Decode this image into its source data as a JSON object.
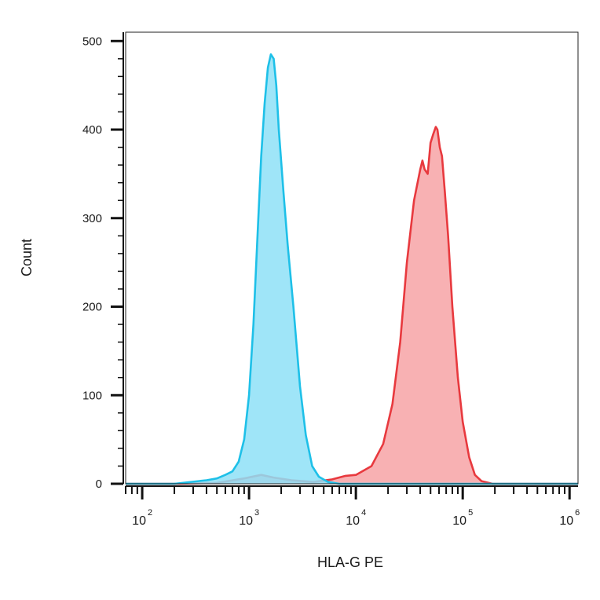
{
  "chart_data": {
    "type": "area",
    "xlabel": "HLA-G PE",
    "ylabel": "Count",
    "x_scale": "log",
    "xlim": [
      70,
      1200000
    ],
    "ylim": [
      0,
      510
    ],
    "yticks": [
      0,
      100,
      200,
      300,
      400,
      500
    ],
    "xticks": [
      {
        "value": 100,
        "base": "10",
        "exp": "2"
      },
      {
        "value": 1000,
        "base": "10",
        "exp": "3"
      },
      {
        "value": 10000,
        "base": "10",
        "exp": "4"
      },
      {
        "value": 100000,
        "base": "10",
        "exp": "5"
      },
      {
        "value": 1000000,
        "base": "10",
        "exp": "6"
      }
    ],
    "grid": false,
    "series": [
      {
        "color": "#e8393e",
        "fill": "#f7a3a6",
        "points": [
          [
            70,
            0
          ],
          [
            200,
            0
          ],
          [
            500,
            1
          ],
          [
            900,
            6
          ],
          [
            1300,
            10
          ],
          [
            1700,
            7
          ],
          [
            2500,
            4
          ],
          [
            4000,
            2
          ],
          [
            6000,
            5
          ],
          [
            8000,
            9
          ],
          [
            10000,
            10
          ],
          [
            14000,
            20
          ],
          [
            18000,
            45
          ],
          [
            22000,
            90
          ],
          [
            26000,
            160
          ],
          [
            30000,
            250
          ],
          [
            35000,
            320
          ],
          [
            40000,
            355
          ],
          [
            42000,
            365
          ],
          [
            44000,
            355
          ],
          [
            47000,
            350
          ],
          [
            50000,
            385
          ],
          [
            53000,
            395
          ],
          [
            56000,
            403
          ],
          [
            58000,
            400
          ],
          [
            61000,
            380
          ],
          [
            64000,
            370
          ],
          [
            68000,
            330
          ],
          [
            73000,
            280
          ],
          [
            80000,
            200
          ],
          [
            90000,
            120
          ],
          [
            100000,
            70
          ],
          [
            115000,
            30
          ],
          [
            130000,
            10
          ],
          [
            150000,
            3
          ],
          [
            190000,
            0
          ],
          [
            1200000,
            0
          ]
        ]
      },
      {
        "color": "#1ec0e8",
        "fill": "#8ee0f7",
        "points": [
          [
            70,
            0
          ],
          [
            200,
            0
          ],
          [
            400,
            4
          ],
          [
            500,
            6
          ],
          [
            600,
            10
          ],
          [
            700,
            14
          ],
          [
            800,
            25
          ],
          [
            900,
            50
          ],
          [
            1000,
            100
          ],
          [
            1100,
            180
          ],
          [
            1200,
            280
          ],
          [
            1300,
            370
          ],
          [
            1400,
            430
          ],
          [
            1500,
            470
          ],
          [
            1600,
            485
          ],
          [
            1700,
            480
          ],
          [
            1800,
            450
          ],
          [
            1900,
            400
          ],
          [
            2100,
            330
          ],
          [
            2300,
            270
          ],
          [
            2600,
            200
          ],
          [
            3000,
            110
          ],
          [
            3400,
            55
          ],
          [
            3900,
            20
          ],
          [
            4500,
            8
          ],
          [
            5500,
            2
          ],
          [
            7000,
            0
          ],
          [
            1200000,
            0
          ]
        ]
      }
    ]
  }
}
